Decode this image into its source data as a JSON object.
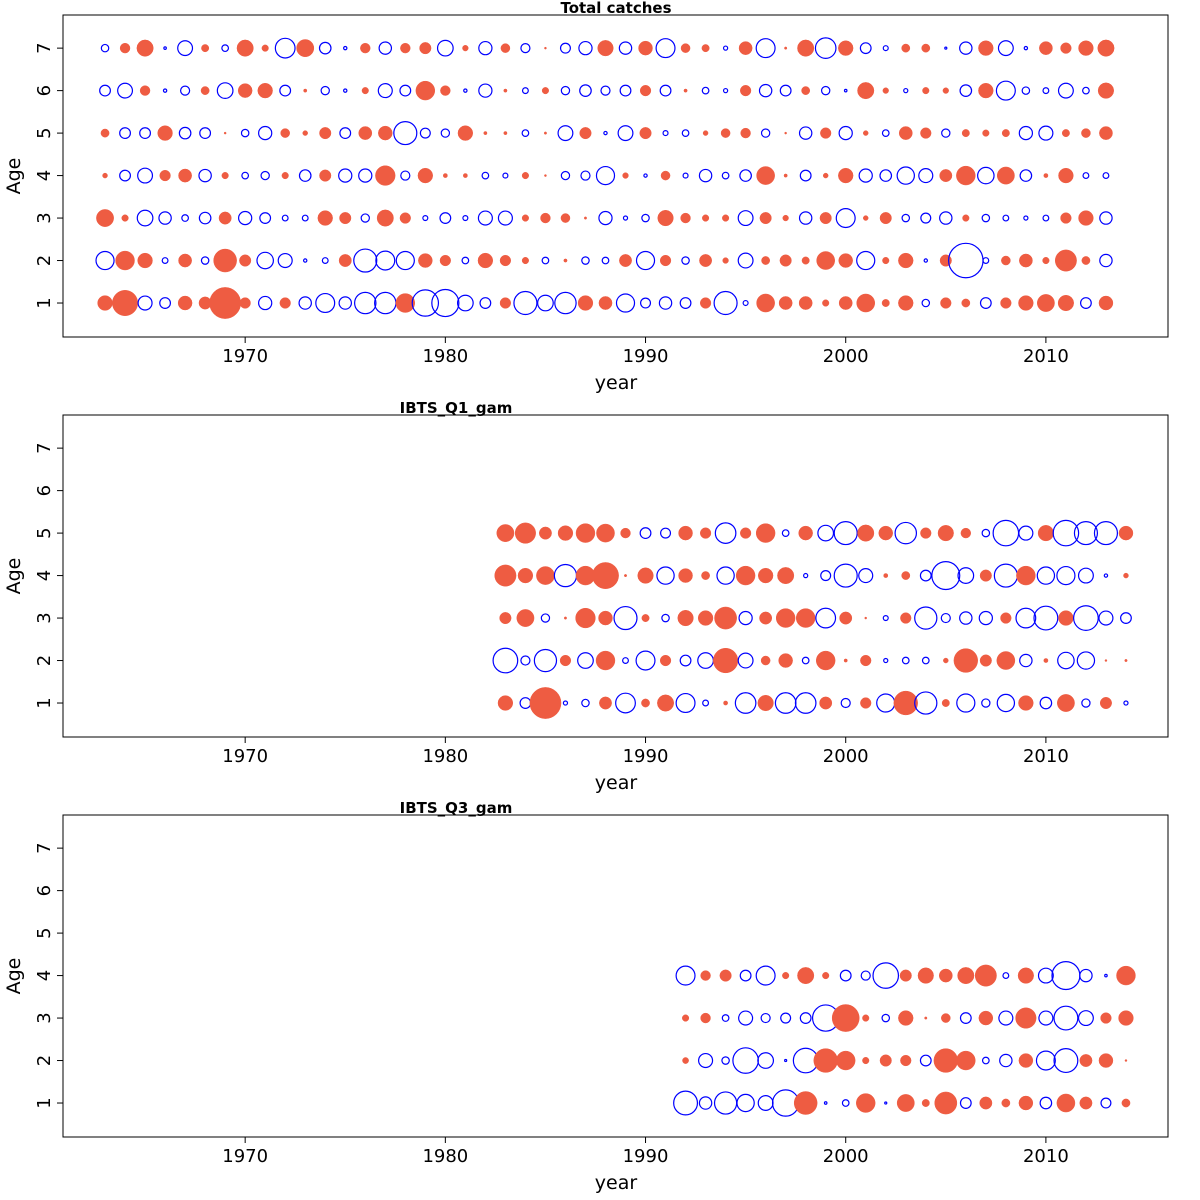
{
  "colors": {
    "positive": "#EE5C42",
    "negative": "#0000FF"
  },
  "chart_data": [
    {
      "type": "scatter",
      "title": "Total catches",
      "xlabel": "year",
      "ylabel": "Age",
      "xlim": [
        1960.9,
        2016.1
      ],
      "ylim": [
        0.2,
        7.78
      ],
      "xticks": [
        "1970",
        "1980",
        "1990",
        "2000",
        "2010"
      ],
      "yticks": [
        "1",
        "2",
        "3",
        "4",
        "5",
        "6",
        "7"
      ],
      "grid": false,
      "legend": "none",
      "first_year": 1963,
      "last_year": 2013,
      "values_by_age": {
        "1": [
          1.8,
          3.1,
          -1.7,
          -1.3,
          1.7,
          1.5,
          3.8,
          1.3,
          -1.6,
          1.3,
          -1.5,
          -2.3,
          -1.5,
          -2.6,
          -2.6,
          2.3,
          -3.2,
          -3.3,
          -1.9,
          -1.3,
          1.3,
          -2.8,
          -1.9,
          -2.6,
          1.8,
          1.6,
          -2.2,
          -1.2,
          -1.5,
          -1.3,
          1.3,
          -2.8,
          -0.6,
          2.2,
          1.6,
          1.6,
          0.8,
          1.6,
          2.2,
          0.9,
          1.8,
          -0.9,
          1.3,
          1.0,
          -1.3,
          1.3,
          1.8,
          2.1,
          1.9,
          -1.3,
          1.7
        ],
        "2": [
          -2.2,
          2.3,
          1.8,
          -0.7,
          1.6,
          -0.9,
          2.8,
          1.4,
          -2.0,
          -1.7,
          -0.4,
          -0.7,
          1.5,
          -2.8,
          -2.3,
          -2.2,
          1.7,
          1.3,
          -0.8,
          1.8,
          1.3,
          0.8,
          -0.8,
          0.4,
          -0.9,
          -0.8,
          1.5,
          -2.2,
          1.3,
          -0.9,
          1.5,
          0.7,
          -1.8,
          1.0,
          1.4,
          0.9,
          2.2,
          1.7,
          -2.2,
          0.8,
          1.8,
          -0.4,
          1.4,
          -4.2,
          -0.7,
          1.1,
          1.6,
          0.8,
          2.6,
          1.0,
          -1.5
        ],
        "3": [
          2.1,
          0.8,
          -1.9,
          -1.5,
          -0.8,
          -1.4,
          1.5,
          -1.6,
          -1.3,
          -0.7,
          -0.7,
          1.8,
          1.4,
          -1.0,
          2.0,
          1.3,
          -0.6,
          -1.3,
          -0.6,
          -1.7,
          -1.7,
          0.8,
          1.2,
          1.1,
          0.3,
          -1.6,
          -0.5,
          -0.9,
          1.9,
          1.2,
          0.8,
          0.8,
          -1.8,
          1.4,
          0.7,
          -1.5,
          1.4,
          -2.3,
          0.6,
          1.4,
          -0.9,
          -1.2,
          -1.5,
          0.8,
          -0.9,
          -0.7,
          -0.5,
          -0.7,
          1.3,
          1.8,
          -1.5
        ],
        "4": [
          0.6,
          -1.3,
          -1.8,
          1.3,
          1.6,
          -1.5,
          0.8,
          -0.8,
          -1.0,
          0.8,
          -1.4,
          1.4,
          -1.6,
          -1.6,
          2.4,
          -1.1,
          1.8,
          0.5,
          0.5,
          -0.8,
          -0.6,
          0.8,
          0.25,
          -1.0,
          -1.1,
          -2.2,
          0.7,
          -0.4,
          1.1,
          -0.6,
          -1.5,
          -0.8,
          -1.4,
          2.2,
          0.4,
          -1.3,
          0.6,
          1.8,
          -1.6,
          -1.4,
          -2.1,
          -1.7,
          1.5,
          2.3,
          -2.0,
          2.1,
          -1.4,
          0.5,
          1.8,
          -0.7,
          -0.7
        ],
        "5": [
          1.0,
          -1.3,
          -1.3,
          1.8,
          -1.4,
          -1.3,
          0.2,
          -0.9,
          -1.6,
          1.1,
          0.6,
          1.4,
          -1.3,
          1.6,
          1.7,
          -2.8,
          -1.2,
          -1.0,
          1.8,
          0.4,
          0.4,
          -0.8,
          0.3,
          -1.8,
          1.4,
          -0.4,
          -1.8,
          1.4,
          -0.6,
          -0.8,
          0.6,
          1.1,
          1.2,
          -1.0,
          0.1,
          -1.5,
          1.3,
          -1.6,
          0.6,
          -0.8,
          1.6,
          1.3,
          -1.0,
          0.9,
          0.8,
          0.9,
          -1.6,
          -1.7,
          0.9,
          1.1,
          1.6
        ],
        "6": [
          -1.3,
          -1.8,
          1.2,
          -0.4,
          -1.1,
          1.0,
          -1.9,
          1.7,
          1.8,
          -1.3,
          0.4,
          -1.0,
          -0.4,
          0.8,
          -1.7,
          -1.3,
          2.3,
          1.2,
          -0.4,
          -1.6,
          0.4,
          -0.7,
          0.8,
          -1.0,
          -1.4,
          -1.1,
          -1.3,
          1.3,
          -1.3,
          0.4,
          -0.8,
          -0.5,
          1.3,
          -1.5,
          -1.3,
          1.0,
          -1.0,
          -0.3,
          2.0,
          0.7,
          -0.5,
          0.8,
          0.7,
          -1.4,
          1.8,
          -2.3,
          -0.9,
          -0.7,
          -1.8,
          -0.8,
          1.9
        ],
        "7": [
          -0.9,
          1.2,
          2.0,
          -0.3,
          -1.8,
          0.9,
          -0.8,
          2.0,
          0.8,
          -2.4,
          2.1,
          -1.4,
          -0.4,
          1.2,
          -1.5,
          1.2,
          1.4,
          -1.9,
          0.7,
          -1.6,
          1.1,
          -1.1,
          0.2,
          -1.2,
          -1.6,
          1.9,
          -1.5,
          1.7,
          -2.3,
          1.1,
          0.9,
          -0.5,
          1.6,
          -2.3,
          0.3,
          2.0,
          -2.5,
          1.8,
          -1.3,
          -0.6,
          1.0,
          1.0,
          -0.25,
          -1.5,
          1.8,
          -1.8,
          -0.4,
          1.6,
          1.3,
          1.8,
          2.0
        ]
      }
    },
    {
      "type": "scatter",
      "title": "IBTS_Q1_gam",
      "xlabel": "year",
      "ylabel": "Age",
      "xlim": [
        1960.9,
        2016.1
      ],
      "ylim": [
        0.2,
        7.78
      ],
      "xticks": [
        "1970",
        "1980",
        "1990",
        "2000",
        "2010"
      ],
      "yticks": [
        "1",
        "2",
        "3",
        "4",
        "5",
        "6",
        "7"
      ],
      "grid": false,
      "legend": "none",
      "first_year": 1983,
      "last_year": 2014,
      "values_by_age": {
        "1": [
          1.8,
          -1.3,
          3.8,
          -0.5,
          -0.9,
          1.5,
          -2.4,
          1.0,
          2.0,
          -2.3,
          -0.7,
          0.5,
          -2.5,
          1.9,
          -2.5,
          -2.5,
          1.5,
          -1.1,
          1.3,
          -2.2,
          2.9,
          -2.7,
          0.9,
          -2.2,
          -1.0,
          -2.1,
          1.8,
          -1.4,
          2.1,
          -1.0,
          1.4,
          -0.5
        ],
        "2": [
          -3.0,
          -1.1,
          -2.7,
          1.3,
          -1.9,
          2.3,
          -0.7,
          -2.3,
          1.3,
          -1.3,
          -1.9,
          3.0,
          -1.8,
          1.1,
          1.7,
          -0.8,
          2.3,
          0.4,
          1.3,
          -0.5,
          -0.8,
          -0.8,
          0.6,
          2.9,
          1.4,
          2.2,
          -1.5,
          0.5,
          -2.0,
          -2.1,
          0.15,
          0.3
        ],
        "3": [
          1.4,
          2.1,
          -1.0,
          0.3,
          2.4,
          1.7,
          -2.8,
          0.9,
          -0.9,
          1.9,
          1.8,
          2.7,
          -1.6,
          1.5,
          2.3,
          2.3,
          -2.4,
          1.5,
          0.15,
          -0.6,
          1.3,
          -2.7,
          -1.1,
          -1.5,
          -1.6,
          1.3,
          -2.4,
          -2.9,
          1.8,
          -3.0,
          -1.7,
          -1.3
        ],
        "4": [
          2.6,
          1.8,
          2.2,
          -2.7,
          2.3,
          3.2,
          0.3,
          1.9,
          -2.1,
          1.7,
          1.0,
          -2.1,
          2.3,
          1.8,
          2.0,
          -0.5,
          -1.2,
          -2.8,
          -1.7,
          0.5,
          1.0,
          -1.3,
          -3.4,
          -1.9,
          1.4,
          -2.8,
          2.3,
          -2.1,
          -2.2,
          -1.8,
          -0.4,
          0.6
        ],
        "5": [
          2.1,
          2.5,
          1.5,
          1.8,
          2.3,
          2.2,
          1.2,
          -1.3,
          -1.2,
          1.7,
          1.3,
          -2.5,
          1.3,
          2.3,
          -0.8,
          1.7,
          -1.9,
          -2.8,
          2.0,
          1.7,
          -2.6,
          1.3,
          1.9,
          1.2,
          -0.9,
          -3.1,
          -1.7,
          1.9,
          -3.1,
          -2.8,
          -2.8,
          1.7
        ]
      }
    },
    {
      "type": "scatter",
      "title": "IBTS_Q3_gam",
      "xlabel": "year",
      "ylabel": "Age",
      "xlim": [
        1960.9,
        2016.1
      ],
      "ylim": [
        0.2,
        7.78
      ],
      "xticks": [
        "1970",
        "1980",
        "1990",
        "2000",
        "2010"
      ],
      "yticks": [
        "1",
        "2",
        "3",
        "4",
        "5",
        "6",
        "7"
      ],
      "grid": false,
      "legend": "none",
      "first_year": 1992,
      "last_year": 2014,
      "values_by_age": {
        "1": [
          -2.9,
          -1.5,
          -2.7,
          -2.1,
          -1.8,
          -3.2,
          2.8,
          -0.3,
          -0.8,
          2.3,
          -0.25,
          2.1,
          0.9,
          2.7,
          -1.3,
          1.5,
          1.0,
          1.7,
          -1.4,
          2.2,
          1.5,
          -1.2,
          1.0
        ],
        "2": [
          0.75,
          -1.7,
          -0.9,
          -3.1,
          -1.9,
          -0.25,
          -3.0,
          2.9,
          2.3,
          0.8,
          1.4,
          1.3,
          -1.3,
          2.9,
          2.3,
          -0.8,
          -1.5,
          1.7,
          -2.3,
          -2.9,
          1.5,
          1.7,
          0.15
        ],
        "3": [
          0.8,
          1.2,
          -0.8,
          -1.7,
          -1.1,
          -1.2,
          -1.3,
          -3.2,
          3.3,
          0.8,
          -0.9,
          1.8,
          0.3,
          1.1,
          -1.3,
          1.7,
          -1.7,
          2.5,
          -1.7,
          -2.9,
          -1.8,
          1.3,
          1.8
        ],
        "4": [
          -2.3,
          1.2,
          1.4,
          -1.3,
          -2.3,
          0.8,
          2.0,
          0.8,
          -1.3,
          -1.1,
          -3.1,
          1.4,
          1.9,
          1.6,
          2.0,
          2.6,
          -0.7,
          1.9,
          -1.8,
          -3.4,
          -1.5,
          -0.3,
          2.3
        ]
      }
    }
  ]
}
